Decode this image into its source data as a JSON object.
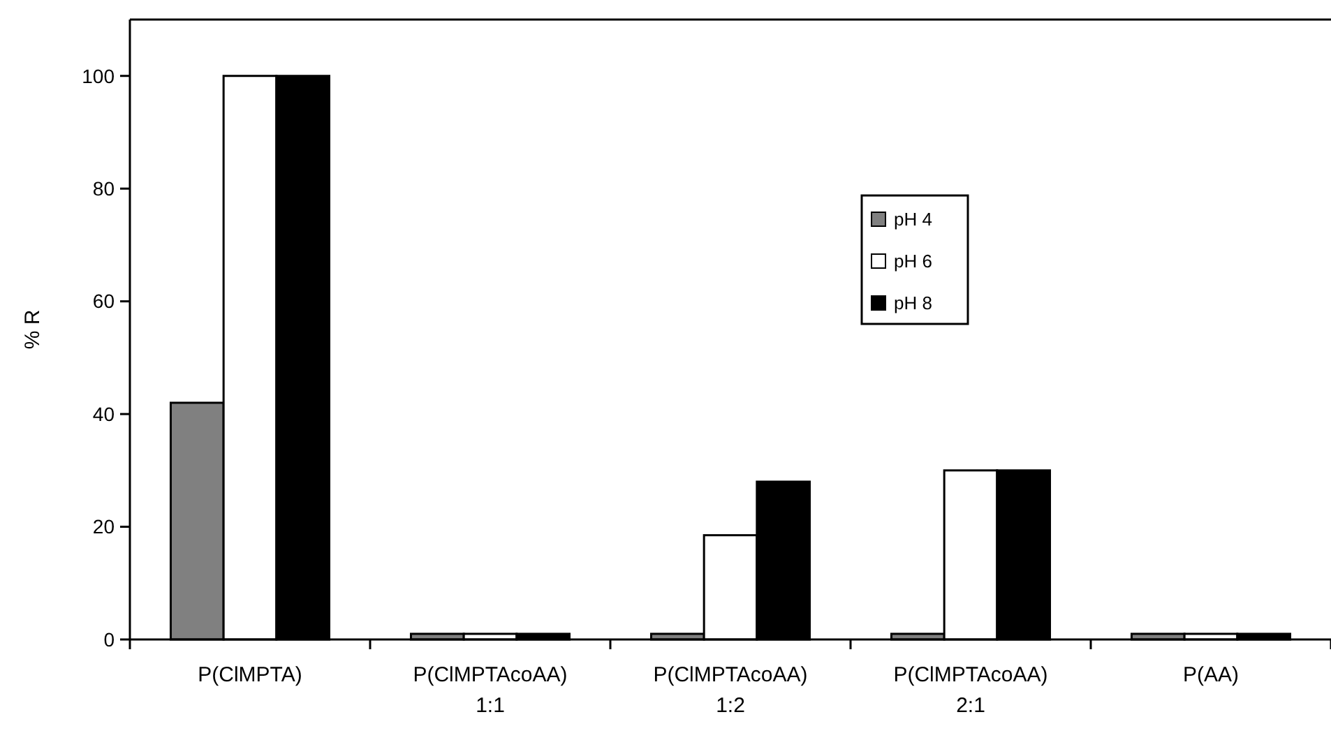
{
  "chart_data": {
    "type": "bar",
    "ylabel": "% R",
    "categories": [
      "P(ClMPTA)",
      "P(ClMPTAcoAA)\n1:1",
      "P(ClMPTAcoAA)\n1:2",
      "P(ClMPTAcoAA)\n2:1",
      "P(AA)"
    ],
    "series": [
      {
        "name": "pH 4",
        "color": "#808080",
        "values": [
          42,
          1,
          1,
          1,
          1
        ]
      },
      {
        "name": "pH 6",
        "color": "#ffffff",
        "values": [
          100,
          1,
          18.5,
          30,
          1
        ]
      },
      {
        "name": "pH 8",
        "color": "#000000",
        "values": [
          100,
          1,
          28,
          30,
          1
        ]
      }
    ],
    "ylim": [
      0,
      110
    ],
    "yticks": [
      0,
      20,
      40,
      60,
      80,
      100
    ],
    "legend": "right",
    "grid": false
  }
}
